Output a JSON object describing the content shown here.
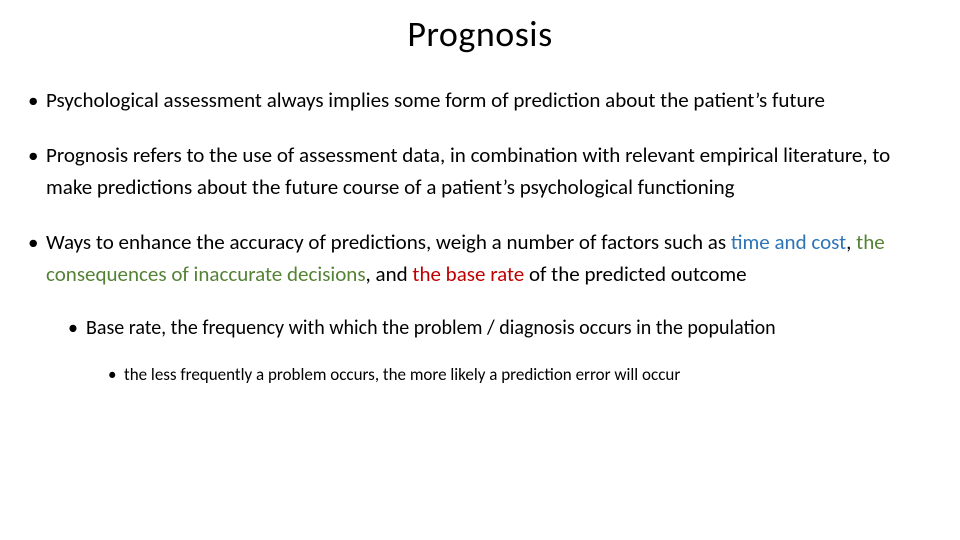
{
  "title": "Prognosis",
  "colors": {
    "text": "#000000",
    "background": "#ffffff",
    "blue": "#2e74b5",
    "green": "#548235",
    "red": "#c00000"
  },
  "typography": {
    "font_family": "Calibri",
    "title_fontsize": 36,
    "level1_fontsize": 21,
    "level2_fontsize": 20,
    "level3_fontsize": 17
  },
  "bullets": {
    "b1": "Psychological assessment always implies some form of prediction about the patient’s future",
    "b2": "Prognosis refers to the use of assessment data, in combination with relevant empirical literature, to make predictions about the future course of a patient’s psychological functioning",
    "b3_pre": "Ways to enhance the accuracy of predictions, weigh a number of factors such as ",
    "b3_hl1": "time and cost",
    "b3_mid1": ", ",
    "b3_hl2": "the consequences of inaccurate decisions",
    "b3_mid2": ", and ",
    "b3_hl3": "the base rate",
    "b3_post": " of the predicted outcome",
    "b3_sub1": "Base rate, the frequency with which the problem / diagnosis occurs in the population",
    "b3_sub1_sub1": "the less frequently a problem occurs, the more likely a prediction error will occur"
  }
}
